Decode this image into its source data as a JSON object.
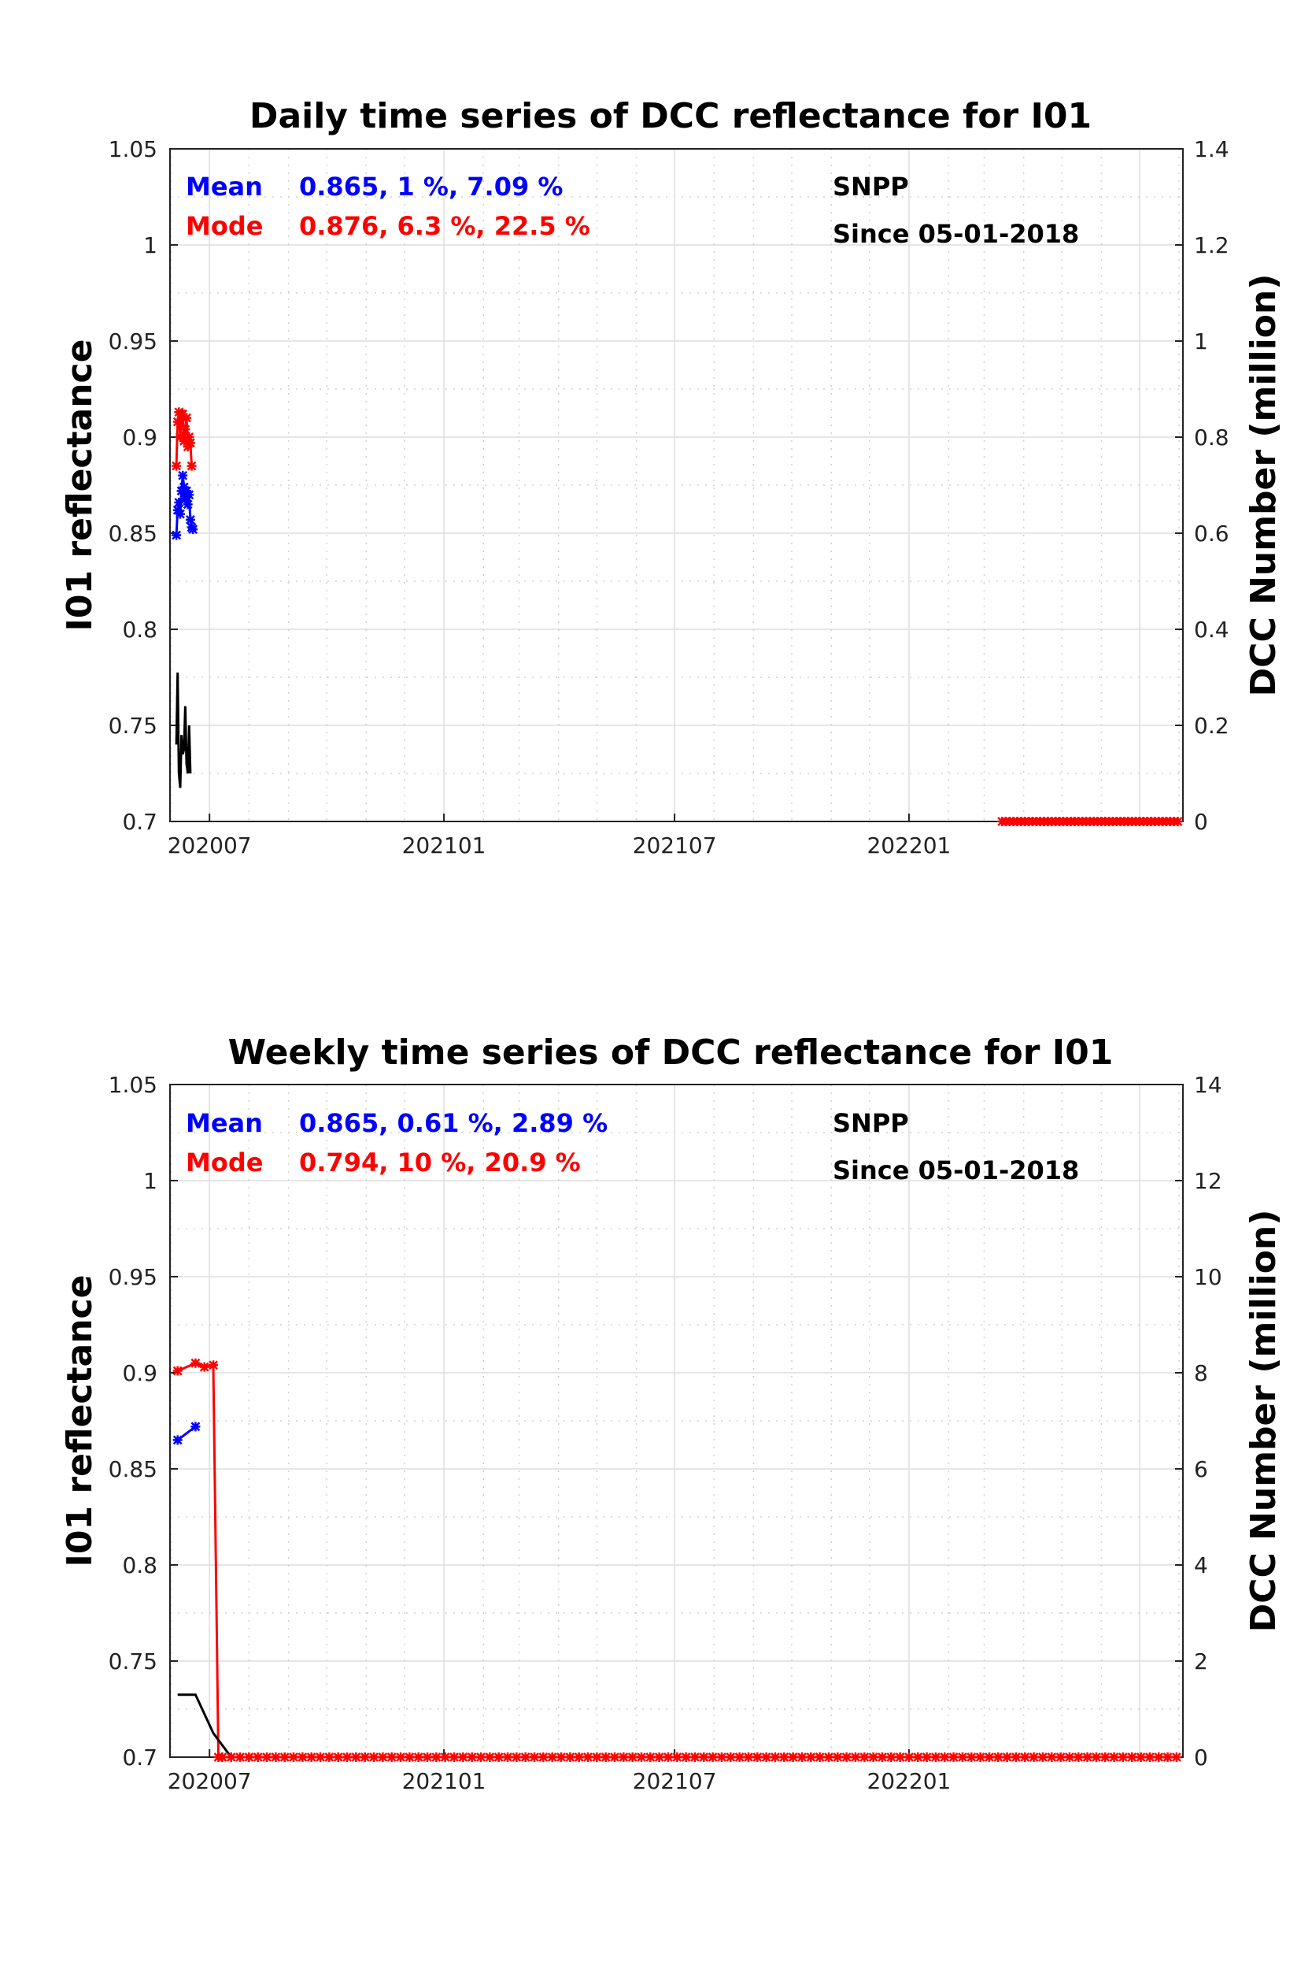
{
  "chart_data": [
    {
      "type": "line",
      "title": "Daily time series of DCC reflectance for I01",
      "ylabel": "I01 reflectance",
      "y2label": "DCC Number (million)",
      "ylim": [
        0.7,
        1.05
      ],
      "y2lim": [
        0,
        1.4
      ],
      "yticks": [
        "0.7",
        "0.75",
        "0.8",
        "0.85",
        "0.9",
        "0.95",
        "1",
        "1.05"
      ],
      "y2ticks": [
        "0",
        "0.2",
        "0.4",
        "0.6",
        "0.8",
        "1",
        "1.2",
        "1.4"
      ],
      "xticks": [
        "202007",
        "202101",
        "202107",
        "202201"
      ],
      "grid": true,
      "annotations": {
        "mean_label": "Mean",
        "mean_stats": "0.865, 1 %, 7.09 %",
        "mode_label": "Mode",
        "mode_stats": "0.876, 6.3 %, 22.5 %",
        "satellite": "SNPP",
        "since": "Since 05-01-2018"
      },
      "series": [
        {
          "name": "Mean",
          "axis": "left",
          "color": "#0000ff",
          "marker": true,
          "points": [
            [
              "2020-06-05",
              0.849
            ],
            [
              "2020-06-06",
              0.862
            ],
            [
              "2020-06-07",
              0.866
            ],
            [
              "2020-06-08",
              0.86
            ],
            [
              "2020-06-09",
              0.872
            ],
            [
              "2020-06-10",
              0.88
            ],
            [
              "2020-06-11",
              0.874
            ],
            [
              "2020-06-12",
              0.868
            ],
            [
              "2020-06-13",
              0.872
            ],
            [
              "2020-06-14",
              0.865
            ],
            [
              "2020-06-15",
              0.87
            ],
            [
              "2020-06-16",
              0.857
            ],
            [
              "2020-06-17",
              0.853
            ],
            [
              "2020-06-18",
              0.852
            ]
          ]
        },
        {
          "name": "Mode",
          "axis": "left",
          "color": "#ff0000",
          "marker": true,
          "points": [
            [
              "2020-06-05",
              0.885
            ],
            [
              "2020-06-06",
              0.908
            ],
            [
              "2020-06-07",
              0.913
            ],
            [
              "2020-06-08",
              0.9
            ],
            [
              "2020-06-09",
              0.912
            ],
            [
              "2020-06-10",
              0.912
            ],
            [
              "2020-06-11",
              0.898
            ],
            [
              "2020-06-12",
              0.904
            ],
            [
              "2020-06-13",
              0.91
            ],
            [
              "2020-06-14",
              0.895
            ],
            [
              "2020-06-15",
              0.9
            ],
            [
              "2020-06-16",
              0.897
            ],
            [
              "2020-06-17",
              0.885
            ]
          ]
        },
        {
          "name": "DCC Number",
          "axis": "right",
          "color": "#000000",
          "marker": false,
          "points": [
            [
              "2020-06-05",
              0.16
            ],
            [
              "2020-06-06",
              0.31
            ],
            [
              "2020-06-07",
              0.1
            ],
            [
              "2020-06-08",
              0.07
            ],
            [
              "2020-06-09",
              0.18
            ],
            [
              "2020-06-10",
              0.14
            ],
            [
              "2020-06-11",
              0.15
            ],
            [
              "2020-06-12",
              0.24
            ],
            [
              "2020-06-13",
              0.12
            ],
            [
              "2020-06-14",
              0.1
            ],
            [
              "2020-06-15",
              0.2
            ],
            [
              "2020-06-16",
              0.1
            ]
          ]
        },
        {
          "name": "Mode (zero)",
          "axis": "left",
          "color": "#ff0000",
          "marker": true,
          "step_days": 3,
          "range": [
            "2022-03-15",
            "2022-07-31"
          ],
          "value": 0.7
        }
      ]
    },
    {
      "type": "line",
      "title": "Weekly time series of DCC reflectance for I01",
      "ylabel": "I01 reflectance",
      "y2label": "DCC Number (million)",
      "ylim": [
        0.7,
        1.05
      ],
      "y2lim": [
        0,
        14
      ],
      "yticks": [
        "0.7",
        "0.75",
        "0.8",
        "0.85",
        "0.9",
        "0.95",
        "1",
        "1.05"
      ],
      "y2ticks": [
        "0",
        "2",
        "4",
        "6",
        "8",
        "10",
        "12",
        "14"
      ],
      "xticks": [
        "202007",
        "202101",
        "202107",
        "202201"
      ],
      "grid": true,
      "annotations": {
        "mean_label": "Mean",
        "mean_stats": "0.865, 0.61 %, 2.89 %",
        "mode_label": "Mode",
        "mode_stats": "0.794, 10 %, 20.9 %",
        "satellite": "SNPP",
        "since": "Since 05-01-2018"
      },
      "series": [
        {
          "name": "Mean",
          "axis": "left",
          "color": "#0000ff",
          "marker": true,
          "points": [
            [
              "2020-06-06",
              0.865
            ],
            [
              "2020-06-20",
              0.872
            ]
          ]
        },
        {
          "name": "Mode",
          "axis": "left",
          "color": "#ff0000",
          "marker": true,
          "points": [
            [
              "2020-06-06",
              0.901
            ],
            [
              "2020-06-20",
              0.905
            ],
            [
              "2020-06-27",
              0.903
            ],
            [
              "2020-07-04",
              0.904
            ],
            [
              "2020-07-08",
              0.7
            ]
          ]
        },
        {
          "name": "DCC Number",
          "axis": "right",
          "color": "#000000",
          "marker": false,
          "points": [
            [
              "2020-06-06",
              1.3
            ],
            [
              "2020-06-20",
              1.3
            ],
            [
              "2020-07-04",
              0.5
            ],
            [
              "2020-07-18",
              0.0
            ]
          ]
        },
        {
          "name": "Mode (zero)",
          "axis": "left",
          "color": "#ff0000",
          "marker": true,
          "step_days": 7,
          "range": [
            "2020-07-11",
            "2022-07-30"
          ],
          "value": 0.7
        }
      ]
    }
  ]
}
